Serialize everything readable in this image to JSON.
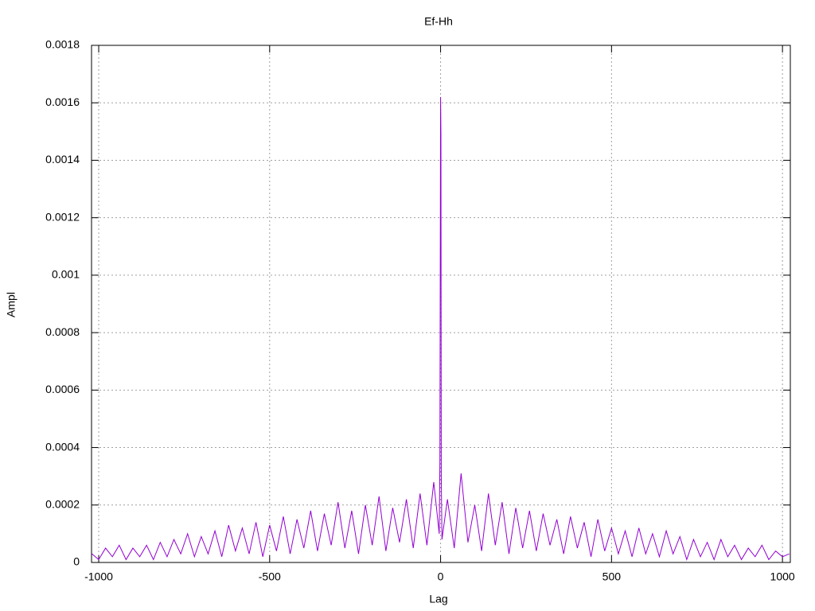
{
  "chart_data": {
    "type": "line",
    "title": "Ef-Hh",
    "x_label": "Lag",
    "y_label": "Ampl",
    "x": [
      -1020,
      -1000,
      -980,
      -960,
      -940,
      -920,
      -900,
      -880,
      -860,
      -840,
      -820,
      -800,
      -780,
      -760,
      -740,
      -720,
      -700,
      -680,
      -660,
      -640,
      -620,
      -600,
      -580,
      -560,
      -540,
      -520,
      -500,
      -480,
      -460,
      -440,
      -420,
      -400,
      -380,
      -360,
      -340,
      -320,
      -300,
      -280,
      -260,
      -240,
      -220,
      -200,
      -180,
      -160,
      -140,
      -120,
      -100,
      -80,
      -60,
      -40,
      -20,
      -4,
      -2,
      -1,
      0,
      1,
      2,
      4,
      20,
      40,
      60,
      80,
      100,
      120,
      140,
      160,
      180,
      200,
      220,
      240,
      260,
      280,
      300,
      320,
      340,
      360,
      380,
      400,
      420,
      440,
      460,
      480,
      500,
      520,
      540,
      560,
      580,
      600,
      620,
      640,
      660,
      680,
      700,
      720,
      740,
      760,
      780,
      800,
      820,
      840,
      860,
      880,
      900,
      920,
      940,
      960,
      980,
      1000,
      1020
    ],
    "series": [
      {
        "name": "Ef-Hh",
        "color": "#9400d3",
        "values": [
          3e-05,
          1e-05,
          5e-05,
          2e-05,
          6e-05,
          1e-05,
          5e-05,
          2e-05,
          6e-05,
          1e-05,
          7e-05,
          2e-05,
          8e-05,
          3e-05,
          0.0001,
          2e-05,
          9e-05,
          3e-05,
          0.00011,
          2e-05,
          0.00013,
          4e-05,
          0.00012,
          3e-05,
          0.00014,
          2e-05,
          0.00013,
          4e-05,
          0.00016,
          3e-05,
          0.00015,
          5e-05,
          0.00018,
          4e-05,
          0.00017,
          6e-05,
          0.00021,
          5e-05,
          0.00018,
          3e-05,
          0.0002,
          6e-05,
          0.00023,
          4e-05,
          0.00019,
          7e-05,
          0.00022,
          5e-05,
          0.00024,
          6e-05,
          0.00028,
          0.0001,
          0.00035,
          0.001,
          0.00162,
          0.00149,
          0.0003,
          8e-05,
          0.00022,
          5e-05,
          0.00031,
          7e-05,
          0.0002,
          4e-05,
          0.00024,
          6e-05,
          0.00021,
          3e-05,
          0.00019,
          5e-05,
          0.00018,
          4e-05,
          0.00017,
          6e-05,
          0.00015,
          3e-05,
          0.00016,
          5e-05,
          0.00014,
          2e-05,
          0.00015,
          4e-05,
          0.00012,
          3e-05,
          0.00011,
          2e-05,
          0.00012,
          3e-05,
          0.0001,
          2e-05,
          0.00011,
          3e-05,
          9e-05,
          1e-05,
          8e-05,
          2e-05,
          7e-05,
          1e-05,
          8e-05,
          2e-05,
          6e-05,
          1e-05,
          5e-05,
          2e-05,
          6e-05,
          1e-05,
          4e-05,
          2e-05,
          3e-05
        ]
      }
    ],
    "xlim": [
      -1021,
      1023
    ],
    "xticks": [
      -1000,
      -500,
      0,
      500,
      1000
    ],
    "ylim": [
      0,
      0.0018
    ],
    "yticks": [
      0,
      0.0002,
      0.0004,
      0.0006,
      0.0008,
      0.001,
      0.0012,
      0.0014,
      0.0016,
      0.0018
    ],
    "grid": true
  }
}
